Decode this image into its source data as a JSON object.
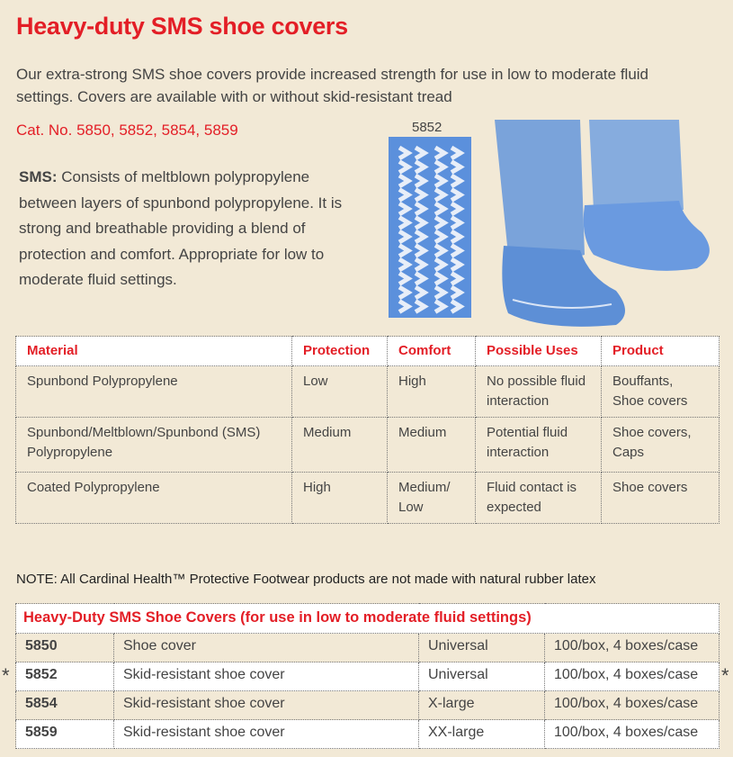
{
  "title": "Heavy-duty SMS shoe covers",
  "intro": "Our extra-strong SMS shoe covers provide increased strength for use in low to moderate fluid settings. Covers are available with or without skid-resistant tread",
  "cat_no": "Cat. No. 5850, 5852, 5854, 5859",
  "sms": {
    "label": "SMS:",
    "text": " Consists of meltblown polypropylene between layers of spunbond polypropylene. It is strong and breathable providing a blend of protection and comfort. Appropriate for low to moderate fluid settings."
  },
  "swatch_label": "5852",
  "materials": {
    "headers": [
      "Material",
      "Protection",
      "Comfort",
      "Possible Uses",
      "Product"
    ],
    "rows": [
      [
        "Spunbond Polypropylene",
        "Low",
        "High",
        "No possible fluid interaction",
        "Bouffants, Shoe covers"
      ],
      [
        "Spunbond/Meltblown/Spunbond (SMS) Polypropylene",
        "Medium",
        "Medium",
        "Potential fluid interaction",
        "Shoe covers, Caps"
      ],
      [
        "Coated Polypropylene",
        "High",
        "Medium/ Low",
        "Fluid contact is expected",
        "Shoe covers"
      ]
    ]
  },
  "note": "NOTE: All Cardinal Health™ Protective Footwear products are not made with natural rubber latex",
  "products": {
    "heading": "Heavy-Duty SMS Shoe Covers (for use in low to moderate fluid settings)",
    "marker": "*",
    "rows": [
      [
        "5850",
        "Shoe cover",
        "Universal",
        "100/box, 4 boxes/case"
      ],
      [
        "5852",
        "Skid-resistant shoe cover",
        "Universal",
        "100/box, 4 boxes/case"
      ],
      [
        "5854",
        "Skid-resistant shoe cover",
        "X-large",
        "100/box, 4 boxes/case"
      ],
      [
        "5859",
        "Skid-resistant shoe cover",
        "XX-large",
        "100/box, 4 boxes/case"
      ]
    ]
  },
  "colors": {
    "accent": "#e31e26",
    "background": "#f2e9d6",
    "product_blue": "#5b8fdb"
  }
}
